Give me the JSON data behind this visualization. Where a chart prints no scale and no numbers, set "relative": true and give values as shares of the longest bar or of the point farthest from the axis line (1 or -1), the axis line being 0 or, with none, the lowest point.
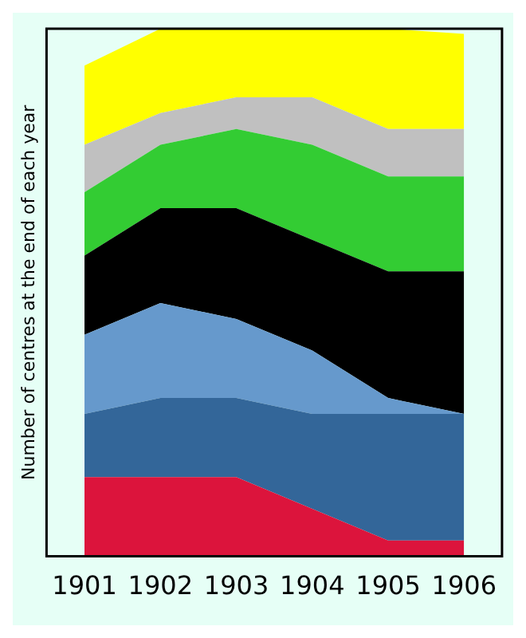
{
  "chart_data": {
    "type": "area",
    "ylabel": "Number of centres at the end of each year",
    "relative": true,
    "stacked": true,
    "grid": false,
    "legend": false,
    "categories": [
      "1901",
      "1902",
      "1903",
      "1904",
      "1905",
      "1906"
    ],
    "series": [
      {
        "color": "#dc143c",
        "values": [
          0.15,
          0.15,
          0.15,
          0.09,
          0.03,
          0.03
        ]
      },
      {
        "color": "#336699",
        "values": [
          0.12,
          0.15,
          0.15,
          0.18,
          0.24,
          0.24
        ]
      },
      {
        "color": "#6699cc",
        "values": [
          0.15,
          0.18,
          0.15,
          0.12,
          0.03,
          0
        ]
      },
      {
        "color": "#000000",
        "values": [
          0.15,
          0.18,
          0.21,
          0.21,
          0.24,
          0.27
        ]
      },
      {
        "color": "#33cc33",
        "values": [
          0.12,
          0.12,
          0.15,
          0.18,
          0.18,
          0.18
        ]
      },
      {
        "color": "#c0c0c0",
        "values": [
          0.09,
          0.06,
          0.06,
          0.09,
          0.09,
          0.09
        ]
      },
      {
        "color": "#ffff00",
        "values": [
          0.15,
          0.16,
          0.13,
          0.13,
          0.19,
          0.18
        ]
      }
    ]
  }
}
